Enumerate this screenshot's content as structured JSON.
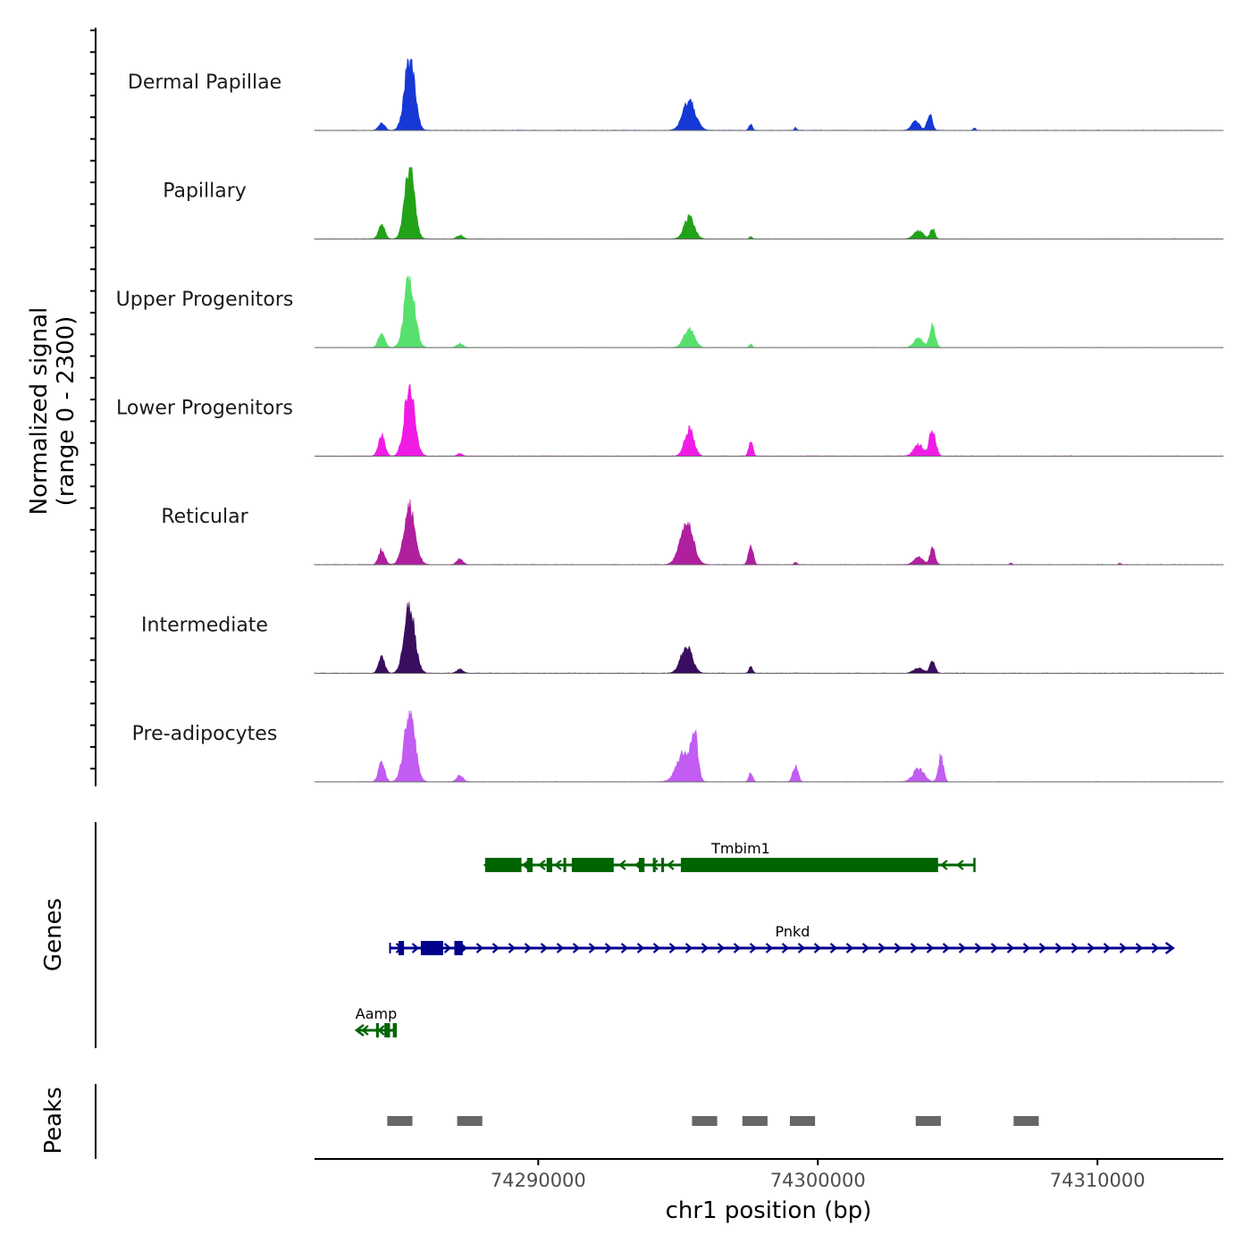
{
  "chart_data": {
    "type": "area",
    "title": "",
    "chromosome": "chr1",
    "xlabel": "chr1 position (bp)",
    "ylabel": "Normalized signal",
    "ylabel_range": "(range 0 - 2300)",
    "xlim": [
      74282000,
      74314500
    ],
    "ylim": [
      0,
      2300
    ],
    "x_ticks": [
      74290000,
      74300000,
      74310000
    ],
    "x_tick_labels": [
      "74290000",
      "74300000",
      "74310000"
    ],
    "series": [
      {
        "name": "Dermal Papillae",
        "color": "#1538d6",
        "peaks": [
          [
            74284400,
            240,
            110
          ],
          [
            74285400,
            2300,
            180
          ],
          [
            74295400,
            960,
            220
          ],
          [
            74297600,
            200,
            60
          ],
          [
            74299200,
            90,
            40
          ],
          [
            74303500,
            300,
            140
          ],
          [
            74304000,
            520,
            90
          ],
          [
            74305600,
            70,
            50
          ]
        ]
      },
      {
        "name": "Papillary",
        "color": "#22a218",
        "peaks": [
          [
            74284400,
            460,
            110
          ],
          [
            74285400,
            2300,
            170
          ],
          [
            74287200,
            120,
            110
          ],
          [
            74295400,
            680,
            180
          ],
          [
            74297600,
            80,
            50
          ],
          [
            74303600,
            260,
            170
          ],
          [
            74304100,
            320,
            80
          ]
        ]
      },
      {
        "name": "Upper Progenitors",
        "color": "#58e06e",
        "peaks": [
          [
            74284400,
            480,
            110
          ],
          [
            74285400,
            2300,
            180
          ],
          [
            74287200,
            130,
            110
          ],
          [
            74295400,
            620,
            180
          ],
          [
            74297600,
            110,
            50
          ],
          [
            74303600,
            300,
            160
          ],
          [
            74304100,
            700,
            100
          ]
        ]
      },
      {
        "name": "Lower Progenitors",
        "color": "#f01ce6",
        "peaks": [
          [
            74284400,
            700,
            110
          ],
          [
            74285400,
            2300,
            180
          ],
          [
            74287200,
            80,
            90
          ],
          [
            74295400,
            880,
            160
          ],
          [
            74297600,
            480,
            70
          ],
          [
            74303600,
            360,
            170
          ],
          [
            74304100,
            860,
            110
          ]
        ]
      },
      {
        "name": "Reticular",
        "color": "#b01f9e",
        "peaks": [
          [
            74284400,
            480,
            110
          ],
          [
            74285400,
            1800,
            200
          ],
          [
            74287200,
            180,
            110
          ],
          [
            74295300,
            1400,
            230
          ],
          [
            74297600,
            680,
            80
          ],
          [
            74299200,
            80,
            50
          ],
          [
            74303600,
            220,
            170
          ],
          [
            74304100,
            500,
            90
          ],
          [
            74306900,
            60,
            40
          ],
          [
            74310800,
            50,
            40
          ]
        ]
      },
      {
        "name": "Intermediate",
        "color": "#3a0e5e",
        "peaks": [
          [
            74284400,
            500,
            110
          ],
          [
            74285400,
            2100,
            190
          ],
          [
            74287200,
            130,
            110
          ],
          [
            74295300,
            880,
            200
          ],
          [
            74297600,
            230,
            60
          ],
          [
            74303600,
            160,
            170
          ],
          [
            74304100,
            400,
            90
          ]
        ]
      },
      {
        "name": "Pre-adipocytes",
        "color": "#c25cf2",
        "peaks": [
          [
            74284400,
            620,
            110
          ],
          [
            74285400,
            2300,
            190
          ],
          [
            74287200,
            220,
            110
          ],
          [
            74295200,
            980,
            240
          ],
          [
            74295600,
            1450,
            110
          ],
          [
            74297600,
            280,
            70
          ],
          [
            74299200,
            520,
            90
          ],
          [
            74303600,
            400,
            200
          ],
          [
            74304400,
            810,
            90
          ]
        ]
      }
    ],
    "genes": [
      {
        "name": "Tmbim1",
        "strand": "-",
        "color": "#006400",
        "start": 74288100,
        "end": 74305600,
        "exons": [
          [
            74288100,
            74289400
          ],
          [
            74289600,
            74289800
          ],
          [
            74290300,
            74290500
          ],
          [
            74290900,
            74291000
          ],
          [
            74291200,
            74292700
          ],
          [
            74293600,
            74293800
          ],
          [
            74294100,
            74294200
          ],
          [
            74294400,
            74294500
          ],
          [
            74295100,
            74304300
          ]
        ]
      },
      {
        "name": "Pnkd",
        "strand": "+",
        "color": "#00008b",
        "start": 74284700,
        "end": 74312700,
        "exons": [
          [
            74285000,
            74285200
          ],
          [
            74285800,
            74286600
          ],
          [
            74287000,
            74287300
          ]
        ]
      },
      {
        "name": "Aamp",
        "strand": "-",
        "color": "#006400",
        "start": 74283500,
        "end": 74284900,
        "exons": [
          [
            74284200,
            74284300
          ],
          [
            74284500,
            74284700
          ],
          [
            74284800,
            74284900
          ]
        ]
      }
    ],
    "peaks_track": {
      "label": "Peaks",
      "color": "#666666",
      "regions": [
        [
          74284600,
          74285500
        ],
        [
          74287100,
          74288000
        ],
        [
          74295500,
          74296400
        ],
        [
          74297300,
          74298200
        ],
        [
          74299000,
          74299900
        ],
        [
          74303500,
          74304400
        ],
        [
          74307000,
          74307900
        ]
      ]
    },
    "genes_track_label": "Genes"
  }
}
